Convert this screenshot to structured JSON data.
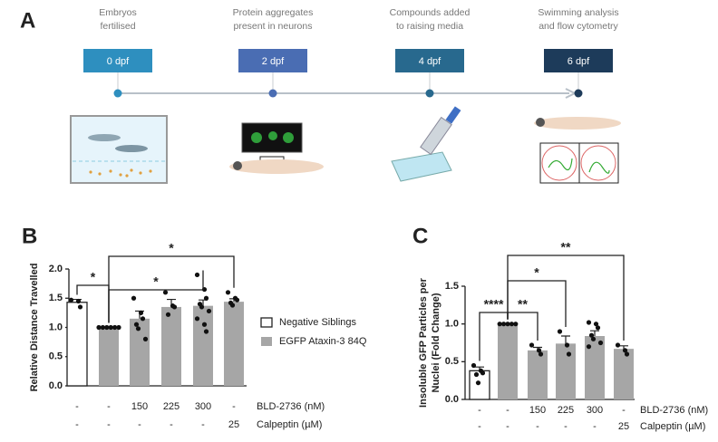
{
  "panels": [
    "A",
    "B",
    "C"
  ],
  "timeline": {
    "steps": [
      {
        "caption": [
          "Embryos",
          "fertilised"
        ],
        "label": "0 dpf",
        "color": "#2e8fbf"
      },
      {
        "caption": [
          "Protein aggregates",
          "present in neurons"
        ],
        "label": "2 dpf",
        "color": "#4a6db3"
      },
      {
        "caption": [
          "Compounds added",
          "to raising media"
        ],
        "label": "4 dpf",
        "color": "#28698e"
      },
      {
        "caption": [
          "Swimming analysis",
          "and flow cytometry"
        ],
        "label": "6 dpf",
        "color": "#1d3b5a"
      }
    ]
  },
  "chart_data": [
    {
      "type": "bar",
      "ylabel": [
        "Relative Distance Travelled"
      ],
      "ylim": [
        0,
        2
      ],
      "yticks": [
        {
          "value": 0,
          "label": "0.0"
        },
        {
          "value": 0.5,
          "label": "0.5"
        },
        {
          "value": 1,
          "label": "1.0"
        },
        {
          "value": 1.5,
          "label": "1.5"
        },
        {
          "value": 2,
          "label": "2.0"
        }
      ],
      "rows": [
        {
          "name": "BLD-2736 (nM)",
          "labels": [
            "-",
            "-",
            "150",
            "225",
            "300",
            "-"
          ]
        },
        {
          "name": "Calpeptin (µM)",
          "labels": [
            "-",
            "-",
            "-",
            "-",
            "-",
            "25"
          ]
        }
      ],
      "series": [
        {
          "name": "Negative Siblings",
          "color": "#ffffff",
          "values": [
            1.43,
            null,
            null,
            null,
            null,
            null
          ],
          "errors": [
            0.05,
            null,
            null,
            null,
            null,
            null
          ],
          "points": [
            [
              1.47,
              1.45,
              1.35
            ],
            null,
            null,
            null,
            null,
            null
          ]
        },
        {
          "name": "EGFP Ataxin-3 84Q",
          "color": "#a6a6a6",
          "values": [
            null,
            1.0,
            1.15,
            1.35,
            1.37,
            1.44
          ],
          "errors": [
            null,
            0,
            0.13,
            0.13,
            0.1,
            0.05
          ],
          "points": [
            null,
            [
              1,
              1,
              1,
              1,
              1,
              1
            ],
            [
              1.5,
              1.25,
              1.15,
              1.05,
              0.98,
              0.8
            ],
            [
              1.6,
              1.37,
              1.35,
              1.22
            ],
            [
              1.9,
              1.65,
              1.5,
              1.4,
              1.35,
              1.28,
              1.15,
              1.05,
              0.93
            ],
            [
              1.6,
              1.5,
              1.47,
              1.42,
              1.38
            ]
          ]
        }
      ],
      "legend": true,
      "annotations": [
        {
          "text": "*",
          "groups": [
            0,
            1
          ]
        },
        {
          "text": "*",
          "groups": [
            1,
            4
          ]
        },
        {
          "text": "*",
          "groups": [
            1,
            5
          ]
        }
      ]
    },
    {
      "type": "bar",
      "ylabel": [
        "Insoluble GFP Particles per",
        "Nuclei (Fold Change)"
      ],
      "ylim": [
        0,
        1.5
      ],
      "yticks": [
        {
          "value": 0,
          "label": "0.0"
        },
        {
          "value": 0.5,
          "label": "0.5"
        },
        {
          "value": 1,
          "label": "1.0"
        },
        {
          "value": 1.5,
          "label": "1.5"
        }
      ],
      "rows": [
        {
          "name": "BLD-2736 (nM)",
          "labels": [
            "-",
            "-",
            "150",
            "225",
            "300",
            "-"
          ]
        },
        {
          "name": "Calpeptin (µM)",
          "labels": [
            "-",
            "-",
            "-",
            "-",
            "-",
            "25"
          ]
        }
      ],
      "series": [
        {
          "color": "#ffffff",
          "values": [
            0.38,
            null,
            null,
            null,
            null,
            null
          ],
          "errors": [
            0.05,
            null,
            null,
            null,
            null,
            null
          ],
          "points": [
            [
              0.45,
              0.38,
              0.35,
              0.33,
              0.22
            ],
            null,
            null,
            null,
            null,
            null
          ]
        },
        {
          "color": "#a6a6a6",
          "values": [
            null,
            1.0,
            0.65,
            0.74,
            0.84,
            0.67
          ],
          "errors": [
            null,
            0,
            0.04,
            0.1,
            0.07,
            0.04
          ],
          "points": [
            null,
            [
              1,
              1,
              1,
              1,
              1
            ],
            [
              0.72,
              0.65,
              0.6
            ],
            [
              0.9,
              0.72,
              0.6
            ],
            [
              1.02,
              1.0,
              0.95,
              0.85,
              0.8,
              0.75,
              0.7
            ],
            [
              0.72,
              0.65,
              0.6
            ]
          ]
        }
      ],
      "legend": false,
      "annotations": [
        {
          "text": "****",
          "groups": [
            0,
            1
          ]
        },
        {
          "text": "**",
          "groups": [
            1,
            2
          ]
        },
        {
          "text": "*",
          "groups": [
            1,
            3
          ]
        },
        {
          "text": "**",
          "groups": [
            1,
            5
          ]
        }
      ]
    }
  ]
}
